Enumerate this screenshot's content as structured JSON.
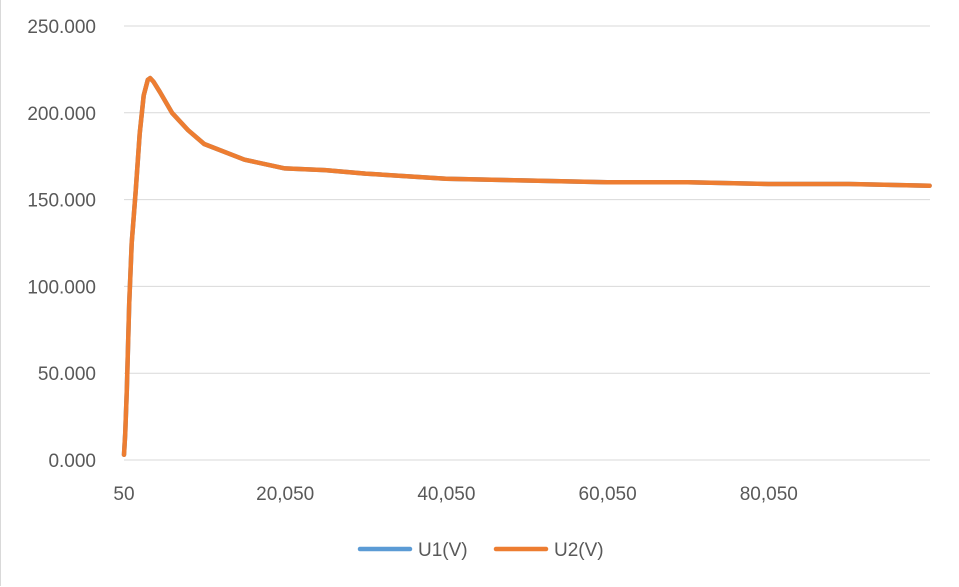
{
  "chart_data": {
    "type": "line",
    "title": "",
    "xlabel": "",
    "ylabel": "",
    "xlim": [
      50,
      100050
    ],
    "ylim": [
      0,
      250
    ],
    "grid": true,
    "legend_position": "bottom",
    "x_tick_labels": [
      "50",
      "20,050",
      "40,050",
      "60,050",
      "80,050"
    ],
    "x_tick_values": [
      50,
      20050,
      40050,
      60050,
      80050
    ],
    "y_tick_labels": [
      "0.000",
      "50.000",
      "100.000",
      "150.000",
      "200.000",
      "250.000"
    ],
    "y_tick_values": [
      0,
      50,
      100,
      150,
      200,
      250
    ],
    "series": [
      {
        "name": "U1(V)",
        "color": "#5b9bd5",
        "x": [
          50,
          200,
          400,
          700,
          1000,
          1500,
          2000,
          2500,
          3000,
          3300,
          3700,
          4500,
          6000,
          8000,
          10000,
          15000,
          20000,
          25000,
          30000,
          40000,
          50000,
          60000,
          70000,
          80000,
          90000,
          100000
        ],
        "y": [
          3,
          15,
          40,
          90,
          125,
          155,
          188,
          210,
          219,
          220,
          218,
          212,
          200,
          190,
          182,
          173,
          168,
          167,
          165,
          162,
          161,
          160,
          160,
          159,
          159,
          158
        ]
      },
      {
        "name": "U2(V)",
        "color": "#ed7d31",
        "x": [
          50,
          200,
          400,
          700,
          1000,
          1500,
          2000,
          2500,
          3000,
          3300,
          3700,
          4500,
          6000,
          8000,
          10000,
          15000,
          20000,
          25000,
          30000,
          40000,
          50000,
          60000,
          70000,
          80000,
          90000,
          100000
        ],
        "y": [
          3,
          15,
          40,
          90,
          125,
          155,
          188,
          210,
          219,
          220,
          218,
          212,
          200,
          190,
          182,
          173,
          168,
          167,
          165,
          162,
          161,
          160,
          160,
          159,
          159,
          158
        ]
      }
    ]
  }
}
